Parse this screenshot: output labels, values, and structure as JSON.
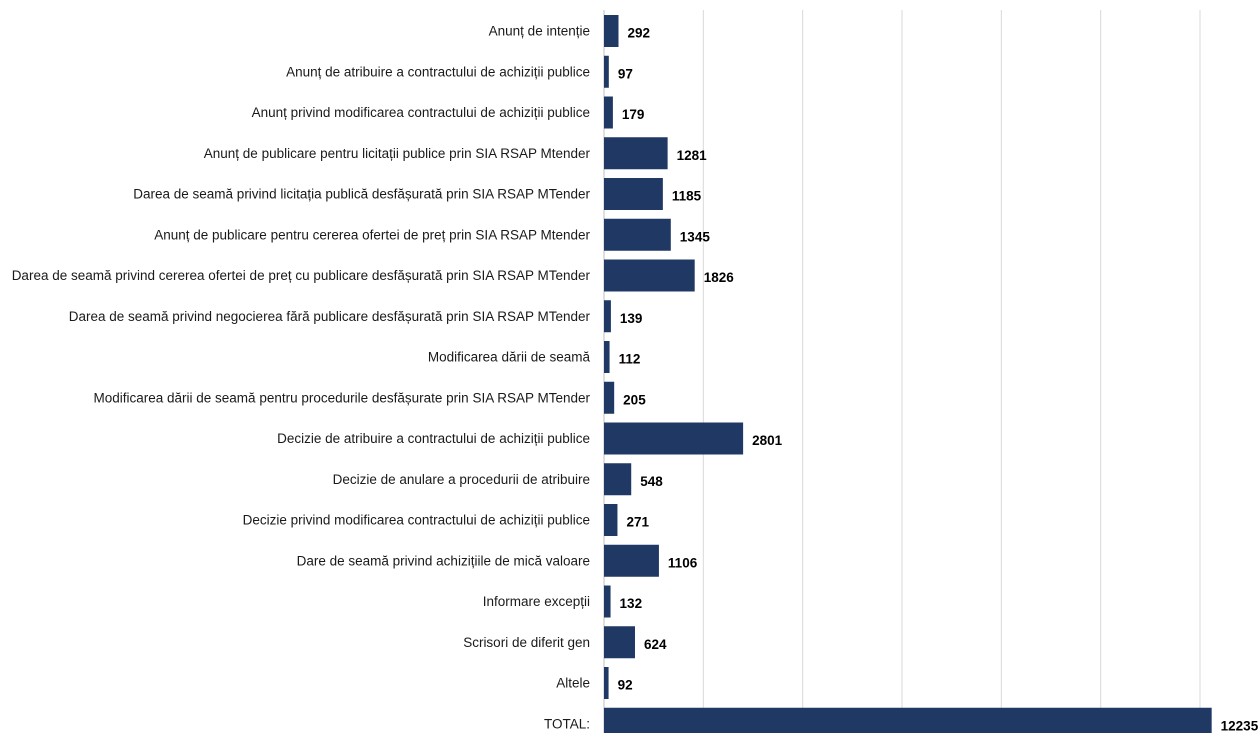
{
  "chart_data": {
    "type": "bar",
    "orientation": "horizontal",
    "categories": [
      "Anunț de intenție",
      "Anunț de atribuire a contractului de achiziții publice",
      "Anunț privind modificarea contractului de achiziții publice",
      "Anunț de publicare pentru licitații publice prin SIA RSAP Mtender",
      "Darea de seamă privind licitația publică desfășurată prin SIA RSAP MTender",
      "Anunț de publicare pentru cererea ofertei de preț prin SIA RSAP Mtender",
      "Darea de seamă privind cererea ofertei de preț cu publicare desfășurată prin SIA RSAP MTender",
      "Darea de seamă privind negocierea fără publicare desfășurată prin SIA RSAP MTender",
      "Modificarea dării de seamă",
      "Modificarea dării de seamă pentru procedurile desfășurate prin SIA RSAP MTender",
      "Decizie de atribuire a contractului de achiziții publice",
      "Decizie de anulare a procedurii de atribuire",
      "Decizie privind modificarea contractului de achiziții publice",
      "Dare de seamă privind achizițiile de mică valoare",
      "Informare excepții",
      "Scrisori de diferit gen",
      "Altele",
      "TOTAL:"
    ],
    "values": [
      292,
      97,
      179,
      1281,
      1185,
      1345,
      1826,
      139,
      112,
      205,
      2801,
      548,
      271,
      1106,
      132,
      624,
      92,
      12235
    ],
    "value_labels": [
      "292",
      "97",
      "179",
      "1281",
      "1185",
      "1345",
      "1826",
      "139",
      "112",
      "205",
      "2801",
      "548",
      "271",
      "1106",
      "132",
      "624",
      "92",
      "12235"
    ],
    "xlim": [
      0,
      12000
    ],
    "grid": true,
    "legend": "none",
    "bar_color": "#203864",
    "title": "",
    "xlabel": "",
    "ylabel": ""
  }
}
